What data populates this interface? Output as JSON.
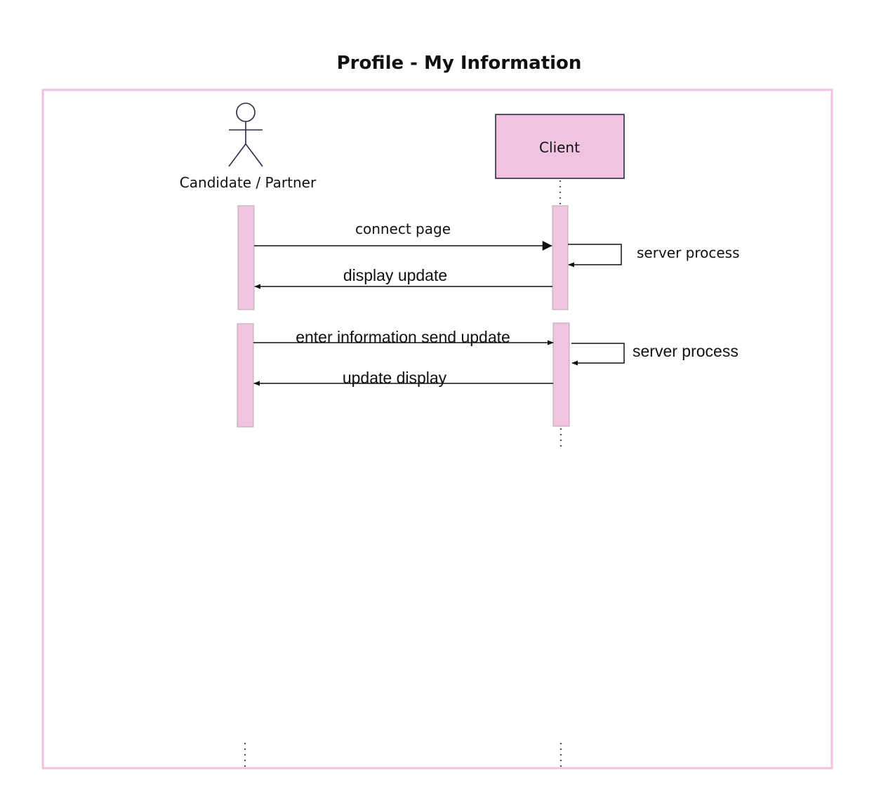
{
  "title": "Profile - My Information",
  "colors": {
    "frame": "#ecc2df",
    "fill": "#f0c3de",
    "box_stroke": "#2a2a44",
    "line": "#111111"
  },
  "participants": {
    "actor": {
      "label": "Candidate / Partner",
      "icon": "stick-figure-actor-icon"
    },
    "client": {
      "label": "Client"
    }
  },
  "messages": {
    "m1": "connect page",
    "m2": "server process",
    "m3": "display update",
    "m4": "enter information send update",
    "m5": "server process",
    "m6": "update display"
  }
}
